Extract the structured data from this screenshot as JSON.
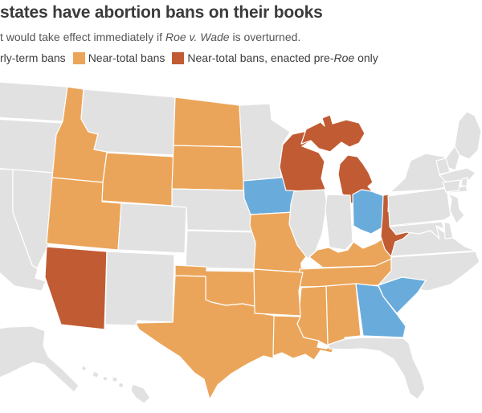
{
  "header": {
    "title": "states have abortion bans on their books",
    "subtitle_prefix": "t would take effect immediately if ",
    "subtitle_italic": "Roe v. Wade",
    "subtitle_suffix": " is overturned."
  },
  "legend": {
    "early_label": "rly-term bans",
    "near_total_label": "Near-total bans",
    "pre_roe_prefix": "Near-total bans, enacted pre-",
    "pre_roe_italic": "Roe",
    "pre_roe_suffix": " only"
  },
  "colors": {
    "early_term": "#69acdc",
    "near_total": "#eba55a",
    "pre_roe_only": "#c15b33",
    "no_ban": "#e1e1e1",
    "state_border": "#ffffff",
    "background": "#ffffff",
    "title_text": "#3b3b3b",
    "subtitle_text": "#555555"
  },
  "chart_data": {
    "type": "choropleth-map",
    "title": "states have abortion bans on their books",
    "subtitle": "t would take effect immediately if Roe v. Wade is overturned.",
    "legend_entries": [
      "rly-term bans",
      "Near-total bans",
      "Near-total bans, enacted pre-Roe only"
    ],
    "categories": {
      "early_term": [
        "Iowa",
        "Ohio",
        "Georgia",
        "South Carolina"
      ],
      "near_total": [
        "Idaho",
        "Utah",
        "Wyoming",
        "North Dakota",
        "South Dakota",
        "Missouri",
        "Arkansas",
        "Oklahoma",
        "Texas",
        "Louisiana",
        "Mississippi",
        "Alabama",
        "Tennessee",
        "Kentucky"
      ],
      "pre_roe_only": [
        "Arizona",
        "Wisconsin",
        "Michigan",
        "West Virginia"
      ]
    }
  },
  "map": {
    "states": [
      {
        "id": "WA",
        "name": "Washington",
        "category": "no_ban"
      },
      {
        "id": "OR",
        "name": "Oregon",
        "category": "no_ban"
      },
      {
        "id": "CA",
        "name": "California",
        "category": "no_ban"
      },
      {
        "id": "NV",
        "name": "Nevada",
        "category": "no_ban"
      },
      {
        "id": "ID",
        "name": "Idaho",
        "category": "near_total"
      },
      {
        "id": "MT",
        "name": "Montana",
        "category": "no_ban"
      },
      {
        "id": "WY",
        "name": "Wyoming",
        "category": "near_total"
      },
      {
        "id": "UT",
        "name": "Utah",
        "category": "near_total"
      },
      {
        "id": "CO",
        "name": "Colorado",
        "category": "no_ban"
      },
      {
        "id": "AZ",
        "name": "Arizona",
        "category": "pre_roe_only"
      },
      {
        "id": "NM",
        "name": "New Mexico",
        "category": "no_ban"
      },
      {
        "id": "ND",
        "name": "North Dakota",
        "category": "near_total"
      },
      {
        "id": "SD",
        "name": "South Dakota",
        "category": "near_total"
      },
      {
        "id": "NE",
        "name": "Nebraska",
        "category": "no_ban"
      },
      {
        "id": "KS",
        "name": "Kansas",
        "category": "no_ban"
      },
      {
        "id": "OK",
        "name": "Oklahoma",
        "category": "near_total"
      },
      {
        "id": "TX",
        "name": "Texas",
        "category": "near_total"
      },
      {
        "id": "MN",
        "name": "Minnesota",
        "category": "no_ban"
      },
      {
        "id": "IA",
        "name": "Iowa",
        "category": "early_term"
      },
      {
        "id": "MO",
        "name": "Missouri",
        "category": "near_total"
      },
      {
        "id": "WI",
        "name": "Wisconsin",
        "category": "pre_roe_only"
      },
      {
        "id": "MI",
        "name": "Michigan",
        "category": "pre_roe_only"
      },
      {
        "id": "IL",
        "name": "Illinois",
        "category": "no_ban"
      },
      {
        "id": "IN",
        "name": "Indiana",
        "category": "no_ban"
      },
      {
        "id": "OH",
        "name": "Ohio",
        "category": "early_term"
      },
      {
        "id": "KY",
        "name": "Kentucky",
        "category": "near_total"
      },
      {
        "id": "TN",
        "name": "Tennessee",
        "category": "near_total"
      },
      {
        "id": "WV",
        "name": "West Virginia",
        "category": "pre_roe_only"
      },
      {
        "id": "VA",
        "name": "Virginia",
        "category": "no_ban"
      },
      {
        "id": "NC",
        "name": "North Carolina",
        "category": "no_ban"
      },
      {
        "id": "SC",
        "name": "South Carolina",
        "category": "early_term"
      },
      {
        "id": "GA",
        "name": "Georgia",
        "category": "early_term"
      },
      {
        "id": "AL",
        "name": "Alabama",
        "category": "near_total"
      },
      {
        "id": "MS",
        "name": "Mississippi",
        "category": "near_total"
      },
      {
        "id": "AR",
        "name": "Arkansas",
        "category": "near_total"
      },
      {
        "id": "LA",
        "name": "Louisiana",
        "category": "near_total"
      },
      {
        "id": "FL",
        "name": "Florida",
        "category": "no_ban"
      },
      {
        "id": "PA",
        "name": "Pennsylvania",
        "category": "no_ban"
      },
      {
        "id": "NY",
        "name": "New York",
        "category": "no_ban"
      },
      {
        "id": "NJ",
        "name": "New Jersey",
        "category": "no_ban"
      },
      {
        "id": "ME",
        "name": "Maine",
        "category": "no_ban"
      },
      {
        "id": "NH",
        "name": "New Hampshire",
        "category": "no_ban"
      },
      {
        "id": "VT",
        "name": "Vermont",
        "category": "no_ban"
      },
      {
        "id": "MA",
        "name": "Massachusetts",
        "category": "no_ban"
      },
      {
        "id": "CT",
        "name": "Connecticut",
        "category": "no_ban"
      },
      {
        "id": "RI",
        "name": "Rhode Island",
        "category": "no_ban"
      },
      {
        "id": "MD",
        "name": "Maryland",
        "category": "no_ban"
      },
      {
        "id": "DE",
        "name": "Delaware",
        "category": "no_ban"
      },
      {
        "id": "AK",
        "name": "Alaska",
        "category": "no_ban"
      },
      {
        "id": "HI",
        "name": "Hawaii",
        "category": "no_ban"
      }
    ]
  }
}
